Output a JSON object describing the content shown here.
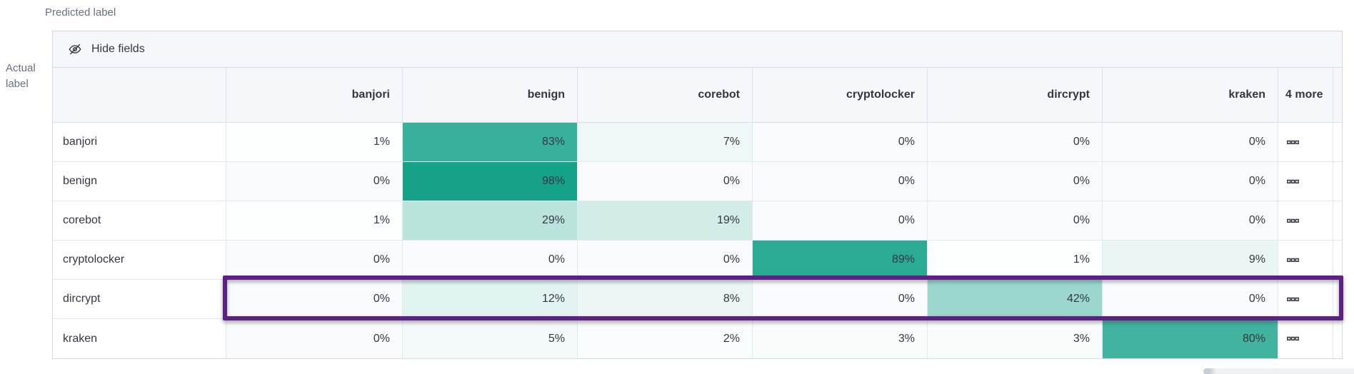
{
  "axis": {
    "predicted": "Predicted label",
    "actual": "Actual label"
  },
  "toolbar": {
    "hide_fields": "Hide fields"
  },
  "matrix": {
    "type": "heatmap",
    "columns": [
      "banjori",
      "benign",
      "corebot",
      "cryptolocker",
      "dircrypt",
      "kraken"
    ],
    "more_columns": "4 more",
    "value_suffix": "%",
    "rows": [
      {
        "label": "banjori",
        "values": [
          1,
          83,
          7,
          0,
          0,
          0
        ],
        "highlighted": false
      },
      {
        "label": "benign",
        "values": [
          0,
          98,
          0,
          0,
          0,
          0
        ],
        "highlighted": false
      },
      {
        "label": "corebot",
        "values": [
          1,
          29,
          19,
          0,
          0,
          0
        ],
        "highlighted": false
      },
      {
        "label": "cryptolocker",
        "values": [
          0,
          0,
          0,
          89,
          1,
          9
        ],
        "highlighted": false
      },
      {
        "label": "dircrypt",
        "values": [
          0,
          12,
          8,
          0,
          42,
          0
        ],
        "highlighted": true
      },
      {
        "label": "kraken",
        "values": [
          0,
          5,
          2,
          3,
          3,
          80
        ],
        "highlighted": false
      }
    ],
    "colors": {
      "cell_base": "#11A087",
      "zero_cell": "#FAFBFD",
      "highlight_border": "#5C2183",
      "header_bg": "#F5F7FA",
      "panel_border": "#D3DAE6",
      "text": "#343741",
      "muted_text": "#69707D"
    }
  },
  "icons": {
    "toolbar_icon": "eye-closed-icon",
    "row_actions_icon": "boxes-horizontal-icon"
  }
}
